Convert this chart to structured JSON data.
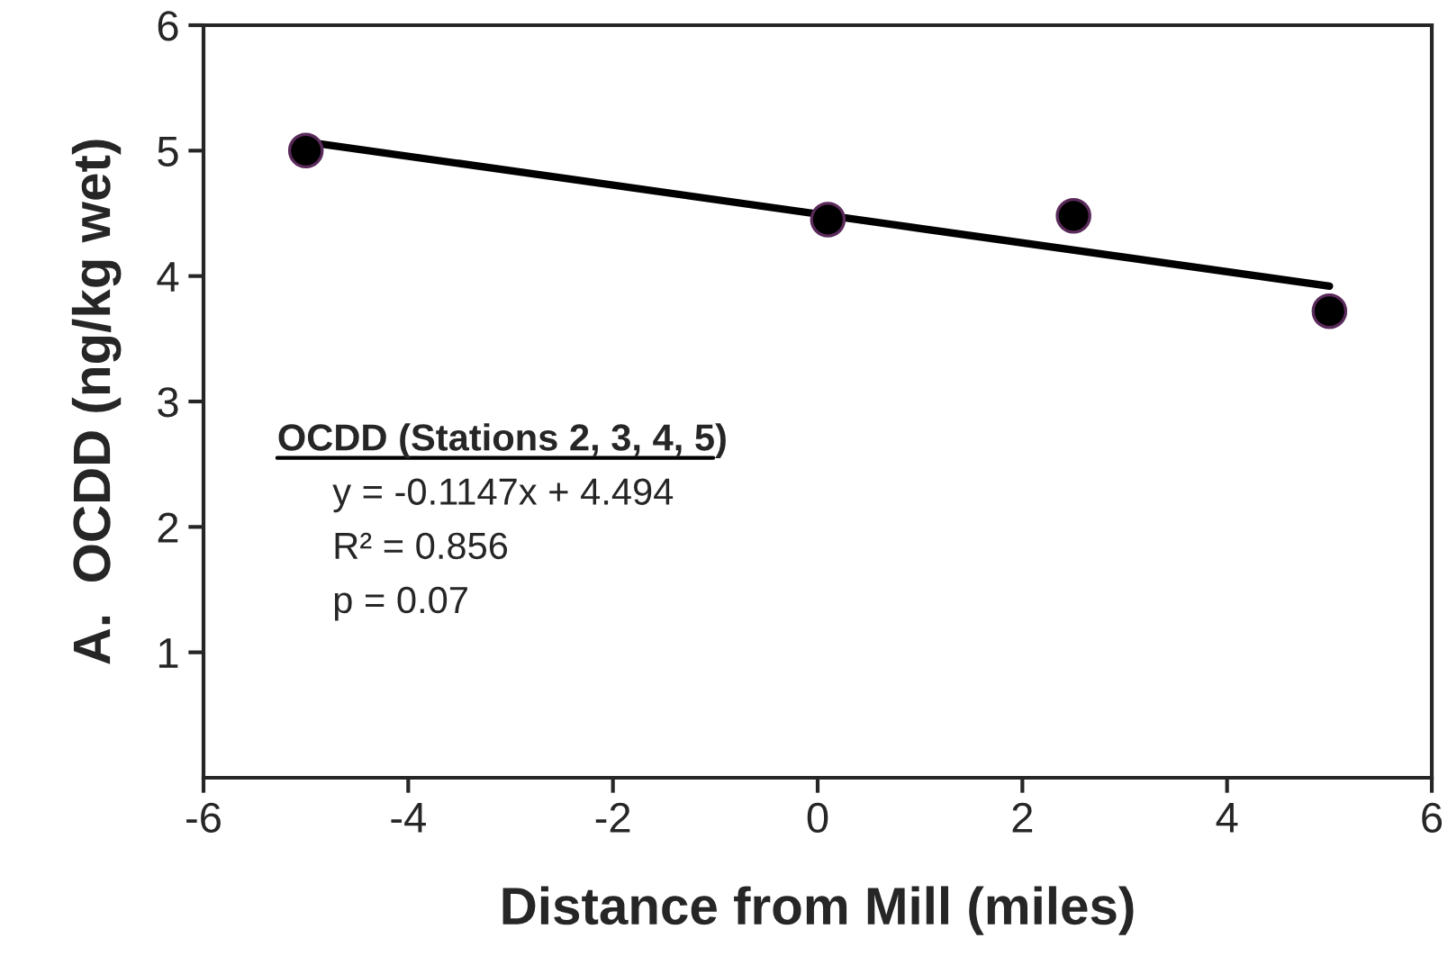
{
  "chart_data": {
    "type": "scatter",
    "xlabel": "Distance from Mill (miles)",
    "ylabel": "A.  OCDD (ng/kg wet)",
    "series": [
      {
        "color": "#000000",
        "x": [
          -5,
          0.1,
          2.5,
          5
        ],
        "values": [
          5.0,
          4.45,
          4.48,
          3.72
        ],
        "marker": "circle"
      },
      {
        "type": "line",
        "color": "#000000",
        "x": [
          -5,
          5
        ],
        "values": [
          5.07,
          3.92
        ],
        "marker": "none"
      }
    ],
    "xlim": [
      -6,
      6
    ],
    "xticks": [
      -6,
      -4,
      -2,
      0,
      2,
      4,
      6
    ],
    "ylim": [
      0,
      6
    ],
    "yticks": [
      1,
      2,
      3,
      4,
      5,
      6
    ],
    "annotations": [
      "OCDD (Stations 2, 3, 4, 5)",
      "y = -0.1147x + 4.494",
      "R² = 0.856",
      "p = 0.07"
    ],
    "grid": false,
    "legend": false
  }
}
